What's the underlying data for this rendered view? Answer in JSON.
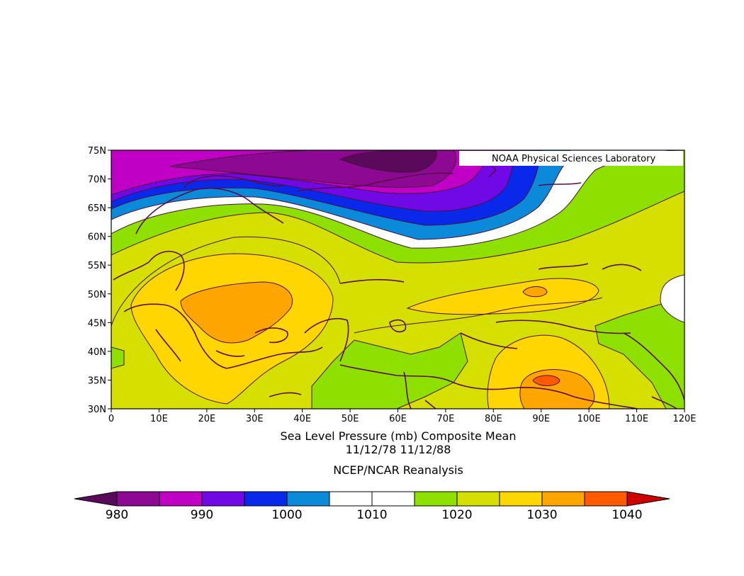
{
  "map": {
    "attribution": "NOAA Physical Sciences Laboratory",
    "title_line1": "Sea Level Pressure (mb) Composite Mean",
    "title_line2": "11/12/78 11/12/88",
    "title_line3": "NCEP/NCAR Reanalysis",
    "lat_labels": [
      "75N",
      "70N",
      "65N",
      "60N",
      "55N",
      "50N",
      "45N",
      "40N",
      "35N",
      "30N"
    ],
    "lon_labels": [
      "0",
      "10E",
      "20E",
      "30E",
      "40E",
      "50E",
      "60E",
      "70E",
      "80E",
      "90E",
      "100E",
      "110E",
      "120E"
    ],
    "extent": {
      "lon": [
        0,
        120
      ],
      "lat": [
        30,
        75
      ]
    },
    "variable": "Sea Level Pressure",
    "units": "mb"
  },
  "colorbar": {
    "labels": [
      "980",
      "990",
      "1000",
      "1010",
      "1020",
      "1030",
      "1040"
    ],
    "levels": [
      985,
      990,
      995,
      1000,
      1005,
      1010,
      1015,
      1020,
      1025,
      1030,
      1035
    ],
    "colors": [
      "#5b0a5b",
      "#8d0893",
      "#c000c4",
      "#7009e6",
      "#0a28ea",
      "#0a8ad8",
      "#ffffff",
      "#ffffff",
      "#8ee000",
      "#d6e000",
      "#ffd600",
      "#ffa500",
      "#ff5a00",
      "#cc0000"
    ]
  },
  "palette": {
    "p980": "#5b0a5b",
    "p985": "#8d0893",
    "p990": "#c000c4",
    "p995": "#7009e6",
    "p1000": "#0a28ea",
    "p1005": "#0a8ad8",
    "p1010": "#ffffff",
    "p1015": "#8ee000",
    "p1020": "#d6e000",
    "p1025": "#ffd600",
    "p1030": "#ffa500",
    "p1035": "#ff5a00",
    "coast": "#5b0a4a"
  }
}
